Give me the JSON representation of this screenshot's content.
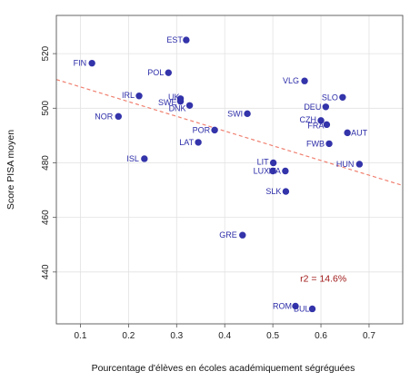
{
  "chart_data": {
    "type": "scatter",
    "title": "",
    "xlabel": "Pourcentage d'élèves en écoles académiquement ségréguées",
    "ylabel": "Score PISA moyen",
    "xlim": [
      0.05,
      0.77
    ],
    "ylim": [
      421,
      534
    ],
    "x_ticks": [
      "0.1",
      "0.2",
      "0.3",
      "0.4",
      "0.5",
      "0.6",
      "0.7"
    ],
    "y_ticks": [
      "440",
      "460",
      "480",
      "500",
      "520"
    ],
    "grid": true,
    "point_color": "#3333aa",
    "trend_color": "#f08070",
    "trend_line": {
      "x": [
        0.05,
        0.77
      ],
      "y": [
        510.5,
        471.7
      ]
    },
    "annotation": "r2 = 14.6%",
    "annotation_color": "#a01818",
    "points": [
      {
        "label": "EST",
        "x": 0.32,
        "y": 525
      },
      {
        "label": "FIN",
        "x": 0.124,
        "y": 516.5
      },
      {
        "label": "POL",
        "x": 0.283,
        "y": 513
      },
      {
        "label": "VLG",
        "x": 0.566,
        "y": 510
      },
      {
        "label": "SLO",
        "x": 0.645,
        "y": 504
      },
      {
        "label": "IRL",
        "x": 0.222,
        "y": 504.5
      },
      {
        "label": "UK",
        "x": 0.308,
        "y": 503.5
      },
      {
        "label": "SWE",
        "x": 0.308,
        "y": 502.5
      },
      {
        "label": "DNK",
        "x": 0.327,
        "y": 501
      },
      {
        "label": "DEU",
        "x": 0.61,
        "y": 500.5
      },
      {
        "label": "SWI",
        "x": 0.447,
        "y": 498
      },
      {
        "label": "NOR",
        "x": 0.179,
        "y": 497
      },
      {
        "label": "CZH",
        "x": 0.6,
        "y": 495.5
      },
      {
        "label": "FRA",
        "x": 0.612,
        "y": 494
      },
      {
        "label": "POR",
        "x": 0.379,
        "y": 492
      },
      {
        "label": "AUT",
        "x": 0.655,
        "y": 491
      },
      {
        "label": "LAT",
        "x": 0.345,
        "y": 487.5
      },
      {
        "label": "FWB",
        "x": 0.617,
        "y": 487
      },
      {
        "label": "ISL",
        "x": 0.233,
        "y": 481.5
      },
      {
        "label": "LIT",
        "x": 0.501,
        "y": 480
      },
      {
        "label": "HUN",
        "x": 0.68,
        "y": 479.5
      },
      {
        "label": "LUX",
        "x": 0.5,
        "y": 477
      },
      {
        "label": "ITA",
        "x": 0.526,
        "y": 477
      },
      {
        "label": "SLK",
        "x": 0.527,
        "y": 469.5
      },
      {
        "label": "GRE",
        "x": 0.437,
        "y": 453.5
      },
      {
        "label": "ROM",
        "x": 0.547,
        "y": 427.5
      },
      {
        "label": "BUL",
        "x": 0.582,
        "y": 426.5
      }
    ]
  }
}
